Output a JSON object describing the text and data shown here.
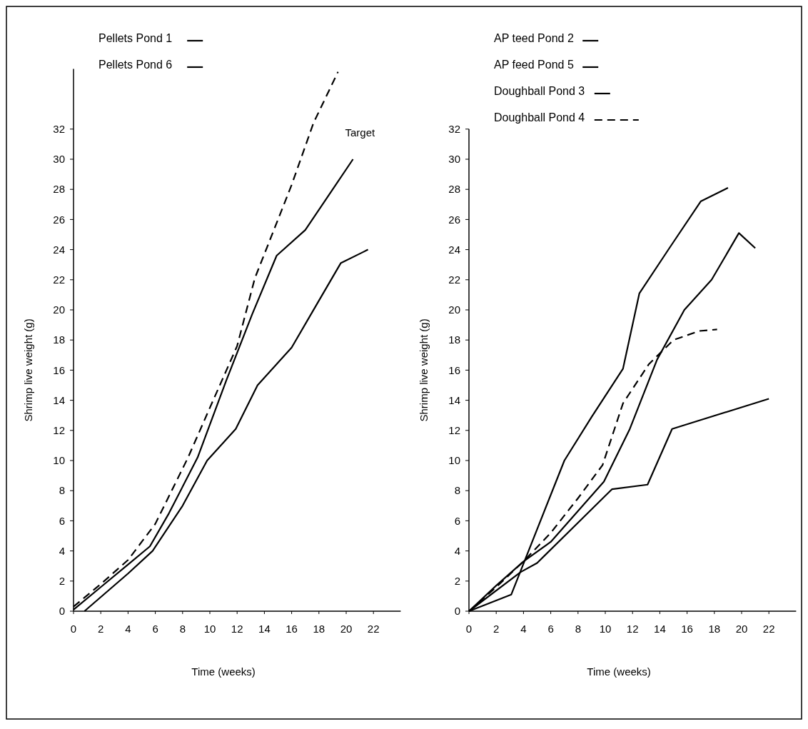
{
  "chart_data": [
    {
      "type": "line",
      "xlabel": "Time (weeks)",
      "ylabel": "Shrimp live weight (g)",
      "xlim": [
        0,
        24
      ],
      "xticks": [
        0,
        2,
        4,
        6,
        8,
        10,
        12,
        14,
        16,
        18,
        20,
        22
      ],
      "ylim": [
        0,
        36
      ],
      "yticks": [
        0,
        2,
        4,
        6,
        8,
        10,
        12,
        14,
        16,
        18,
        20,
        22,
        24,
        26,
        28,
        30,
        32
      ],
      "legend": "top left",
      "grid": false,
      "series": [
        {
          "name": "Pellets Pond 1",
          "color": "#000000",
          "line_style": "solid",
          "x": [
            0.8,
            4,
            5.8,
            8,
            9.8,
            11.9,
            13.5,
            16,
            17.8,
            19.6,
            21.6
          ],
          "values": [
            0,
            2.5,
            4,
            7,
            10,
            12.1,
            15,
            17.5,
            20.3,
            23.1,
            24
          ]
        },
        {
          "name": "Pellets Pond 6",
          "color": "#000000",
          "line_style": "solid",
          "x": [
            0,
            2,
            4,
            5.6,
            7,
            9.1,
            11.2,
            13.1,
            14.9,
            17,
            20.5
          ],
          "values": [
            0.1,
            1.6,
            3.1,
            4.3,
            6.5,
            10.2,
            15.3,
            19.7,
            23.6,
            25.3,
            30
          ]
        },
        {
          "color": "#000000",
          "line_style": "dashed",
          "x": [
            0,
            2,
            4,
            6,
            8.4,
            10,
            12,
            13.3,
            16,
            17.6,
            19.4
          ],
          "values": [
            0.3,
            1.8,
            3.4,
            5.8,
            10.2,
            13.5,
            17.6,
            22.1,
            28.3,
            32.4,
            35.8
          ]
        }
      ],
      "annotations": [
        "Target"
      ]
    },
    {
      "type": "line",
      "xlabel": "Time (weeks)",
      "ylabel": "Shrimp live weight (g)",
      "xlim": [
        0,
        24
      ],
      "xticks": [
        0,
        2,
        4,
        6,
        8,
        10,
        12,
        14,
        16,
        18,
        20,
        22
      ],
      "ylim": [
        0,
        32
      ],
      "yticks": [
        0,
        2,
        4,
        6,
        8,
        10,
        12,
        14,
        16,
        18,
        20,
        22,
        24,
        26,
        28,
        30,
        32
      ],
      "legend": "top left",
      "grid": false,
      "series": [
        {
          "name": "AP teed Pond 2",
          "color": "#000000",
          "line_style": "solid",
          "x": [
            0,
            3.8,
            5,
            10.5,
            13.1,
            14.9,
            22
          ],
          "values": [
            0,
            2.6,
            3.2,
            8.1,
            8.4,
            12.1,
            14.1
          ]
        },
        {
          "name": "AP feed Pond 5",
          "color": "#000000",
          "line_style": "solid",
          "x": [
            0,
            3.1,
            7,
            9,
            11.3,
            12.5,
            14.7,
            17,
            19
          ],
          "values": [
            0,
            1.1,
            10,
            12.9,
            16.1,
            21.1,
            24.1,
            27.2,
            28.1
          ]
        },
        {
          "name": "Doughball Pond 3",
          "color": "#000000",
          "line_style": "solid",
          "x": [
            0,
            2,
            4,
            6,
            9.9,
            11.8,
            13.8,
            15.8,
            17.8,
            19.8,
            21
          ],
          "values": [
            0,
            1.7,
            3.3,
            4.6,
            8.6,
            12.1,
            16.7,
            20,
            22,
            25.1,
            24.1
          ]
        },
        {
          "name": "Doughball Pond 4",
          "color": "#000000",
          "line_style": "dashed",
          "x": [
            0,
            2,
            4,
            6,
            8,
            9.8,
            11.3,
            13.2,
            15,
            16.9,
            18.2
          ],
          "values": [
            0,
            1.6,
            3.3,
            5.2,
            7.5,
            9.7,
            13.8,
            16.4,
            18,
            18.6,
            18.7
          ]
        }
      ]
    }
  ]
}
